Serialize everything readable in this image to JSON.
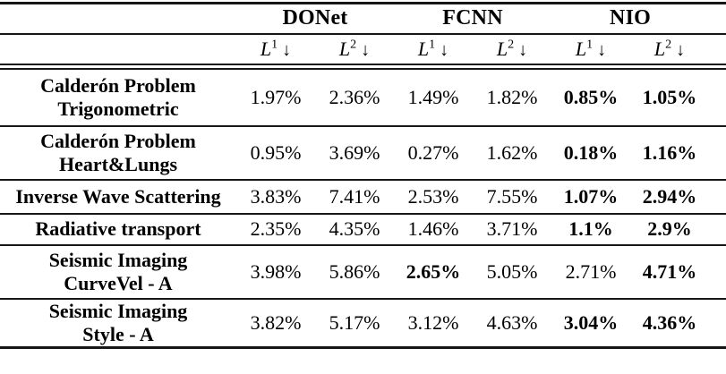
{
  "table": {
    "colors": {
      "text": "#000000",
      "rule": "#161616",
      "background": "#ffffff"
    },
    "methods": [
      {
        "name": "DONet"
      },
      {
        "name": "FCNN"
      },
      {
        "name": "NIO"
      }
    ],
    "metric_headers": [
      {
        "base": "L",
        "sup": "1",
        "arrow": "↓"
      },
      {
        "base": "L",
        "sup": "2",
        "arrow": "↓"
      },
      {
        "base": "L",
        "sup": "1",
        "arrow": "↓"
      },
      {
        "base": "L",
        "sup": "2",
        "arrow": "↓"
      },
      {
        "base": "L",
        "sup": "1",
        "arrow": "↓"
      },
      {
        "base": "L",
        "sup": "2",
        "arrow": "↓"
      }
    ],
    "rows": [
      {
        "label_line1": "Calderón Problem",
        "label_line2": "Trigonometric",
        "values": [
          {
            "text": "1.97%",
            "bold": false
          },
          {
            "text": "2.36%",
            "bold": false
          },
          {
            "text": "1.49%",
            "bold": false
          },
          {
            "text": "1.82%",
            "bold": false
          },
          {
            "text": "0.85%",
            "bold": true
          },
          {
            "text": "1.05%",
            "bold": true
          }
        ]
      },
      {
        "label_line1": "Calderón Problem",
        "label_line2": "Heart&Lungs",
        "values": [
          {
            "text": "0.95%",
            "bold": false
          },
          {
            "text": "3.69%",
            "bold": false
          },
          {
            "text": "0.27%",
            "bold": false
          },
          {
            "text": "1.62%",
            "bold": false
          },
          {
            "text": "0.18%",
            "bold": true
          },
          {
            "text": "1.16%",
            "bold": true
          }
        ]
      },
      {
        "label_line1": "Inverse Wave Scattering",
        "values": [
          {
            "text": "3.83%",
            "bold": false
          },
          {
            "text": "7.41%",
            "bold": false
          },
          {
            "text": "2.53%",
            "bold": false
          },
          {
            "text": "7.55%",
            "bold": false
          },
          {
            "text": "1.07%",
            "bold": true
          },
          {
            "text": "2.94%",
            "bold": true
          }
        ]
      },
      {
        "label_line1": "Radiative transport",
        "values": [
          {
            "text": "2.35%",
            "bold": false
          },
          {
            "text": "4.35%",
            "bold": false
          },
          {
            "text": "1.46%",
            "bold": false
          },
          {
            "text": "3.71%",
            "bold": false
          },
          {
            "text": "1.1%",
            "bold": true
          },
          {
            "text": "2.9%",
            "bold": true
          }
        ]
      },
      {
        "label_line1": "Seismic Imaging",
        "label_line2": "CurveVel - A",
        "values": [
          {
            "text": "3.98%",
            "bold": false
          },
          {
            "text": "5.86%",
            "bold": false
          },
          {
            "text": "2.65%",
            "bold": true
          },
          {
            "text": "5.05%",
            "bold": false
          },
          {
            "text": "2.71%",
            "bold": false
          },
          {
            "text": "4.71%",
            "bold": true
          }
        ]
      },
      {
        "label_line1": "Seismic Imaging",
        "label_line2": "Style - A",
        "values": [
          {
            "text": "3.82%",
            "bold": false
          },
          {
            "text": "5.17%",
            "bold": false
          },
          {
            "text": "3.12%",
            "bold": false
          },
          {
            "text": "4.63%",
            "bold": false
          },
          {
            "text": "3.04%",
            "bold": true
          },
          {
            "text": "4.36%",
            "bold": true
          }
        ]
      }
    ]
  }
}
